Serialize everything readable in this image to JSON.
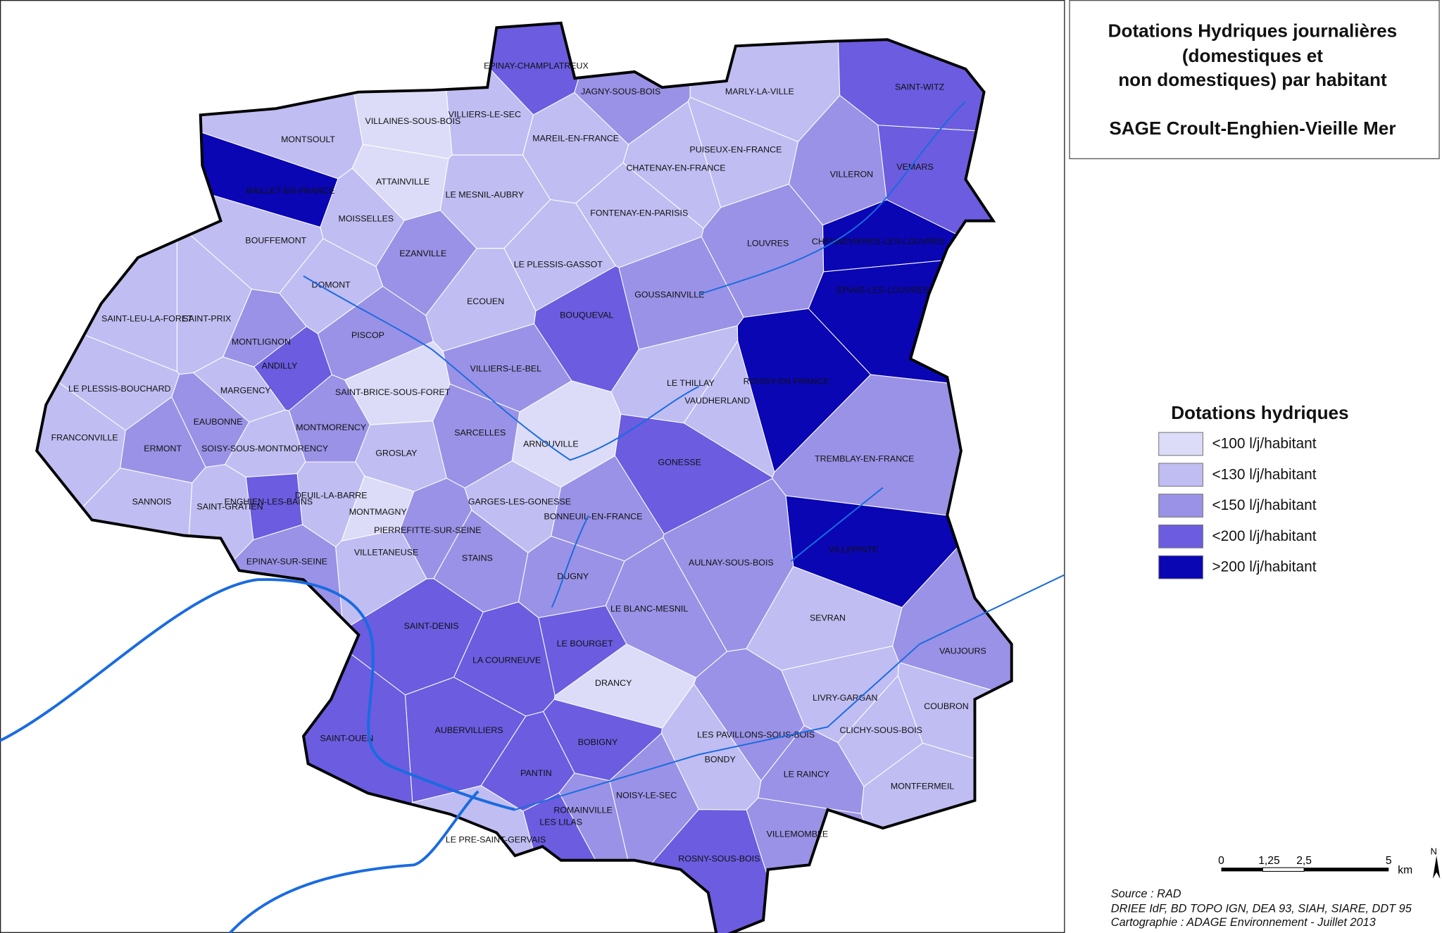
{
  "title": {
    "lines": [
      "Dotations Hydriques journalières",
      "(domestiques et",
      "non domestiques) par habitant"
    ],
    "subtitle": "SAGE Croult-Enghien-Vieille Mer"
  },
  "legend": {
    "title": "Dotations hydriques",
    "items": [
      {
        "label": "<100 l/j/habitant",
        "color": "#dcdcf8"
      },
      {
        "label": "<130 l/j/habitant",
        "color": "#c0bdf2"
      },
      {
        "label": "<150 l/j/habitant",
        "color": "#9a92e6"
      },
      {
        "label": "<200 l/j/habitant",
        "color": "#6b5ce0"
      },
      {
        "label": ">200 l/j/habitant",
        "color": "#0a06b4"
      }
    ]
  },
  "communes": [
    {
      "name": "EPINAY-CHAMPLATREUX",
      "color": "#6b5ce0"
    },
    {
      "name": "JAGNY-SOUS-BOIS",
      "color": "#9a92e6"
    },
    {
      "name": "VILLIERS-LE-SEC",
      "color": "#c0bdf2"
    },
    {
      "name": "MARLY-LA-VILLE",
      "color": "#c0bdf2"
    },
    {
      "name": "SAINT-WITZ",
      "color": "#6b5ce0"
    },
    {
      "name": "MONTSOULT",
      "color": "#c0bdf2"
    },
    {
      "name": "VILLAINES-SOUS-BOIS",
      "color": "#dcdcf8"
    },
    {
      "name": "MAREIL-EN-FRANCE",
      "color": "#c0bdf2"
    },
    {
      "name": "PUISEUX-EN-FRANCE",
      "color": "#c0bdf2"
    },
    {
      "name": "CHATENAY-EN-FRANCE",
      "color": "#c0bdf2"
    },
    {
      "name": "VILLERON",
      "color": "#9a92e6"
    },
    {
      "name": "VEMARS",
      "color": "#6b5ce0"
    },
    {
      "name": "BAILLET-EN-FRANCE",
      "color": "#0a06b4"
    },
    {
      "name": "ATTAINVILLE",
      "color": "#dcdcf8"
    },
    {
      "name": "LE MESNIL-AUBRY",
      "color": "#c0bdf2"
    },
    {
      "name": "FONTENAY-EN-PARISIS",
      "color": "#c0bdf2"
    },
    {
      "name": "MOISSELLES",
      "color": "#c0bdf2"
    },
    {
      "name": "BOUFFEMONT",
      "color": "#c0bdf2"
    },
    {
      "name": "EZANVILLE",
      "color": "#9a92e6"
    },
    {
      "name": "LOUVRES",
      "color": "#9a92e6"
    },
    {
      "name": "CHENNEVIERES-LES-LOUVRES",
      "color": "#0a06b4"
    },
    {
      "name": "LE PLESSIS-GASSOT",
      "color": "#c0bdf2"
    },
    {
      "name": "EPIAIS-LES-LOUVRES",
      "color": "#0a06b4"
    },
    {
      "name": "DOMONT",
      "color": "#c0bdf2"
    },
    {
      "name": "GOUSSAINVILLE",
      "color": "#9a92e6"
    },
    {
      "name": "ECOUEN",
      "color": "#c0bdf2"
    },
    {
      "name": "SAINT-LEU-LA-FORET",
      "color": "#c0bdf2"
    },
    {
      "name": "SAINT-PRIX",
      "color": "#c0bdf2"
    },
    {
      "name": "BOUQUEVAL",
      "color": "#6b5ce0"
    },
    {
      "name": "PISCOP",
      "color": "#9a92e6"
    },
    {
      "name": "MONTLIGNON",
      "color": "#9a92e6"
    },
    {
      "name": "ANDILLY",
      "color": "#6b5ce0"
    },
    {
      "name": "VILLIERS-LE-BEL",
      "color": "#9a92e6"
    },
    {
      "name": "ROISSY-EN-FRANCE",
      "color": "#0a06b4"
    },
    {
      "name": "LE THILLAY",
      "color": "#c0bdf2"
    },
    {
      "name": "VAUDHERLAND",
      "color": "#c0bdf2"
    },
    {
      "name": "LE PLESSIS-BOUCHARD",
      "color": "#c0bdf2"
    },
    {
      "name": "MARGENCY",
      "color": "#c0bdf2"
    },
    {
      "name": "SAINT-BRICE-SOUS-FORET",
      "color": "#dcdcf8"
    },
    {
      "name": "EAUBONNE",
      "color": "#9a92e6"
    },
    {
      "name": "MONTMORENCY",
      "color": "#9a92e6"
    },
    {
      "name": "SARCELLES",
      "color": "#9a92e6"
    },
    {
      "name": "ARNOUVILLE",
      "color": "#dcdcf8"
    },
    {
      "name": "FRANCONVILLE",
      "color": "#c0bdf2"
    },
    {
      "name": "ERMONT",
      "color": "#9a92e6"
    },
    {
      "name": "SOISY-SOUS-MONTMORENCY",
      "color": "#c0bdf2"
    },
    {
      "name": "GROSLAY",
      "color": "#c0bdf2"
    },
    {
      "name": "GONESSE",
      "color": "#6b5ce0"
    },
    {
      "name": "TREMBLAY-EN-FRANCE",
      "color": "#9a92e6"
    },
    {
      "name": "DEUIL-LA-BARRE",
      "color": "#c0bdf2"
    },
    {
      "name": "SANNOIS",
      "color": "#c0bdf2"
    },
    {
      "name": "SAINT-GRATIEN",
      "color": "#c0bdf2"
    },
    {
      "name": "ENGHIEN-LES-BAINS",
      "color": "#6b5ce0"
    },
    {
      "name": "GARGES-LES-GONESSE",
      "color": "#c0bdf2"
    },
    {
      "name": "BONNEUIL-EN-FRANCE",
      "color": "#9a92e6"
    },
    {
      "name": "MONTMAGNY",
      "color": "#dcdcf8"
    },
    {
      "name": "PIERREFITTE-SUR-SEINE",
      "color": "#9a92e6"
    },
    {
      "name": "VILLEPINTE",
      "color": "#0a06b4"
    },
    {
      "name": "VILLETANEUSE",
      "color": "#c0bdf2"
    },
    {
      "name": "STAINS",
      "color": "#9a92e6"
    },
    {
      "name": "AULNAY-SOUS-BOIS",
      "color": "#9a92e6"
    },
    {
      "name": "EPINAY-SUR-SEINE",
      "color": "#9a92e6"
    },
    {
      "name": "DUGNY",
      "color": "#9a92e6"
    },
    {
      "name": "LE BLANC-MESNIL",
      "color": "#9a92e6"
    },
    {
      "name": "SEVRAN",
      "color": "#c0bdf2"
    },
    {
      "name": "SAINT-DENIS",
      "color": "#6b5ce0"
    },
    {
      "name": "LE BOURGET",
      "color": "#6b5ce0"
    },
    {
      "name": "VAUJOURS",
      "color": "#9a92e6"
    },
    {
      "name": "LA COURNEUVE",
      "color": "#6b5ce0"
    },
    {
      "name": "DRANCY",
      "color": "#dcdcf8"
    },
    {
      "name": "LIVRY-GARGAN",
      "color": "#c0bdf2"
    },
    {
      "name": "COUBRON",
      "color": "#c0bdf2"
    },
    {
      "name": "AUBERVILLIERS",
      "color": "#6b5ce0"
    },
    {
      "name": "LES PAVILLONS-SOUS-BOIS",
      "color": "#9a92e6"
    },
    {
      "name": "CLICHY-SOUS-BOIS",
      "color": "#c0bdf2"
    },
    {
      "name": "SAINT-OUEN",
      "color": "#6b5ce0"
    },
    {
      "name": "BOBIGNY",
      "color": "#6b5ce0"
    },
    {
      "name": "BONDY",
      "color": "#c0bdf2"
    },
    {
      "name": "LE RAINCY",
      "color": "#9a92e6"
    },
    {
      "name": "PANTIN",
      "color": "#6b5ce0"
    },
    {
      "name": "MONTFERMEIL",
      "color": "#c0bdf2"
    },
    {
      "name": "NOISY-LE-SEC",
      "color": "#9a92e6"
    },
    {
      "name": "ROMAINVILLE",
      "color": "#9a92e6"
    },
    {
      "name": "LES LILAS",
      "color": "#6b5ce0"
    },
    {
      "name": "VILLEMOMBLE",
      "color": "#9a92e6"
    },
    {
      "name": "LE PRE-SAINT-GERVAIS",
      "color": "#c0bdf2"
    },
    {
      "name": "ROSNY-SOUS-BOIS",
      "color": "#6b5ce0"
    }
  ],
  "scale_bar": {
    "labels": [
      "0",
      "1,25",
      "2,5",
      "5"
    ],
    "unit": "km"
  },
  "north": "N",
  "source": [
    "Source :  RAD",
    "DRIEE IdF, BD TOPO IGN, DEA 93, SIAH, SIARE, DDT 95",
    "Cartographie : ADAGE Environnement - Juillet 2013"
  ]
}
